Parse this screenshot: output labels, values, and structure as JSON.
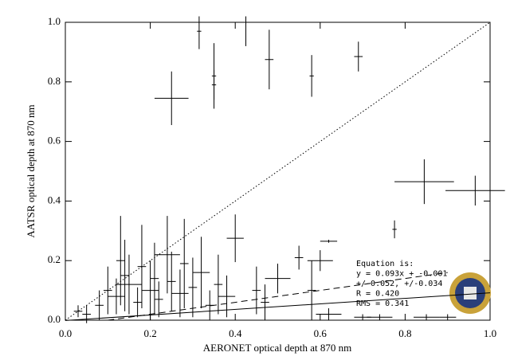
{
  "chart_data": {
    "type": "scatter",
    "x_label": "AERONET optical depth at 870 nm",
    "y_label": "AATSR optical depth at 870 nm",
    "xlim": [
      0,
      1
    ],
    "ylim": [
      0,
      1
    ],
    "xticks": [
      {
        "value": 0,
        "label": "0.0"
      },
      0.2,
      0.4,
      0.6,
      0.8,
      {
        "value": 1,
        "label": "1.0"
      }
    ],
    "yticks": [
      {
        "value": 0,
        "label": "0.0"
      },
      0.2,
      0.4,
      0.6,
      0.8,
      {
        "value": 1,
        "label": "1.0"
      }
    ],
    "color": "#000000",
    "x": [
      0.25,
      0.315,
      0.35,
      0.35,
      0.425,
      0.48,
      0.58,
      0.69,
      0.845,
      0.965,
      0.775,
      0.62,
      0.6,
      0.4,
      0.5,
      0.55,
      0.05,
      0.08,
      0.1,
      0.12,
      0.13,
      0.14,
      0.15,
      0.17,
      0.18,
      0.2,
      0.21,
      0.22,
      0.24,
      0.25,
      0.27,
      0.28,
      0.3,
      0.32,
      0.34,
      0.36,
      0.38,
      0.45,
      0.47,
      0.58,
      0.62,
      0.7,
      0.74,
      0.85,
      0.9,
      0.03
    ],
    "y": [
      0.745,
      0.97,
      0.82,
      0.79,
      1.0,
      0.875,
      0.82,
      0.885,
      0.465,
      0.435,
      0.305,
      0.265,
      0.2,
      0.275,
      0.14,
      0.21,
      0.02,
      0.05,
      0.1,
      0.08,
      0.2,
      0.15,
      0.12,
      0.06,
      0.18,
      0.1,
      0.14,
      0.07,
      0.22,
      0.13,
      0.09,
      0.19,
      0.11,
      0.16,
      0.05,
      0.12,
      0.08,
      0.1,
      0.06,
      0.1,
      0.02,
      0.01,
      0.01,
      0.01,
      0.01,
      0.03
    ],
    "xerr": [
      0.04,
      0.005,
      0.005,
      0.005,
      0.005,
      0.01,
      0.005,
      0.01,
      0.07,
      0.07,
      0.005,
      0.02,
      0.03,
      0.02,
      0.03,
      0.01,
      0.01,
      0.01,
      0.01,
      0.02,
      0.01,
      0.01,
      0.03,
      0.01,
      0.01,
      0.02,
      0.01,
      0.01,
      0.03,
      0.01,
      0.02,
      0.01,
      0.01,
      0.02,
      0.01,
      0.01,
      0.02,
      0.01,
      0.01,
      0.01,
      0.03,
      0.02,
      0.03,
      0.03,
      0.02,
      0.01
    ],
    "yerr": [
      0.09,
      0.06,
      0.11,
      0.05,
      0.08,
      0.1,
      0.07,
      0.05,
      0.075,
      0.05,
      0.03,
      0.005,
      0.035,
      0.08,
      0.05,
      0.04,
      0.03,
      0.05,
      0.08,
      0.06,
      0.15,
      0.12,
      0.1,
      0.05,
      0.14,
      0.1,
      0.12,
      0.06,
      0.13,
      0.1,
      0.08,
      0.15,
      0.1,
      0.12,
      0.05,
      0.1,
      0.07,
      0.08,
      0.06,
      0.1,
      0.02,
      0.01,
      0.01,
      0.01,
      0.01,
      0.02
    ],
    "lines": [
      {
        "style": "dotted",
        "x": [
          0,
          1
        ],
        "y": [
          0,
          1
        ]
      },
      {
        "style": "dashed",
        "x": [
          0.1,
          0.9
        ],
        "y": [
          0,
          0.16
        ]
      },
      {
        "style": "solid",
        "x": [
          0,
          1
        ],
        "y": [
          -0.001,
          0.092
        ]
      }
    ],
    "annotations": [
      "Equation is:",
      "y = 0.093x + -0.001",
      "+/-0.052, +/-0.034",
      "R = 0.420",
      "RMS = 0.341"
    ]
  }
}
